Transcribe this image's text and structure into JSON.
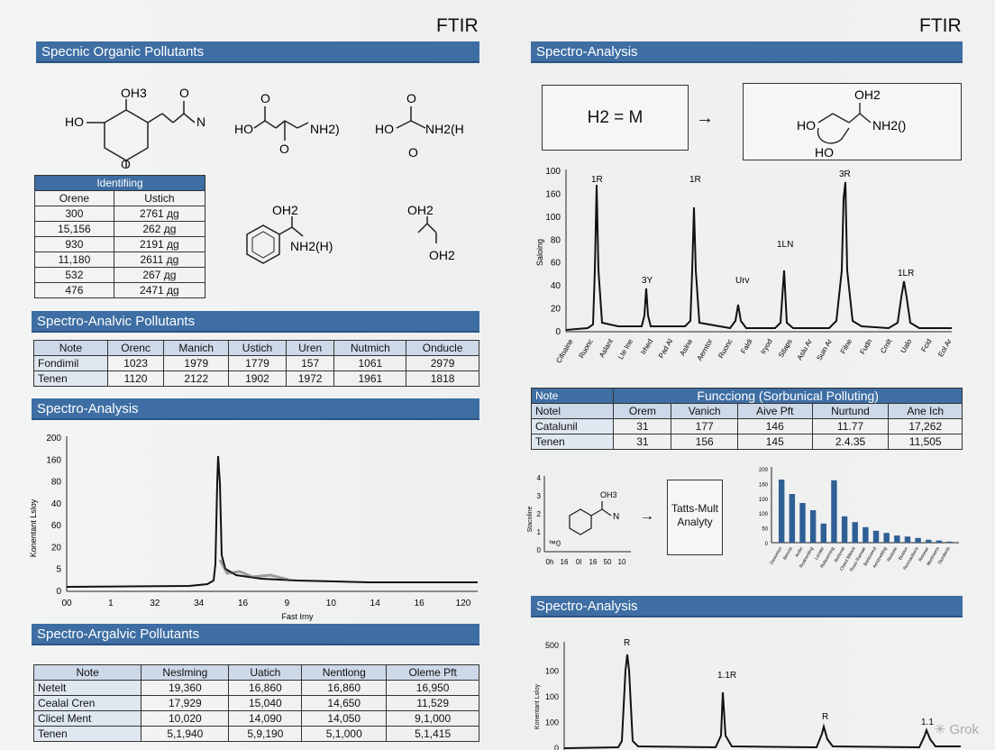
{
  "left": {
    "title": "FTIR",
    "section1": "Specnic Organic Pollutants",
    "molecules_row1": [
      {
        "labels": [
          "OH3",
          "HO",
          "N",
          "O",
          "O"
        ]
      },
      {
        "labels": [
          "HO",
          "O",
          "O",
          "NH2)"
        ]
      },
      {
        "labels": [
          "HO",
          "O",
          "O",
          "NH2(H"
        ]
      }
    ],
    "molecules_row2": [
      {
        "labels": [
          "OH2",
          "NH2(H)"
        ]
      },
      {
        "labels": [
          "OH2",
          "OH2"
        ]
      }
    ],
    "ident_table": {
      "title": "Identifiing",
      "headers": [
        "Orene",
        "Ustich"
      ],
      "rows": [
        [
          "300",
          "2761 дg"
        ],
        [
          "15,156",
          "262 дg"
        ],
        [
          "930",
          "2191 дg"
        ],
        [
          "11,180",
          "2611 дg"
        ],
        [
          "532",
          "267 дg"
        ],
        [
          "476",
          "2471 дg"
        ]
      ]
    },
    "section2": "Spectro-Analvic Pollutants",
    "table2": {
      "headers": [
        "Note",
        "Orenc",
        "Manich",
        "Ustich",
        "Uren",
        "Nutmich",
        "Onducle"
      ],
      "rows": [
        [
          "Fondimil",
          "1023",
          "1979",
          "1779",
          "157",
          "1061",
          "2979"
        ],
        [
          "Tenen",
          "1120",
          "2122",
          "1902",
          "1972",
          "1961",
          "1818"
        ]
      ]
    },
    "section3": "Spectro-Analysis",
    "chart": {
      "y_ticks": [
        "200",
        "160",
        "80",
        "40",
        "60",
        "20",
        "5",
        "0"
      ],
      "x_ticks": [
        "00",
        "1",
        "32",
        "34",
        "16",
        "9",
        "10",
        "14",
        "16",
        "120"
      ],
      "xlabel": "Fast Irny",
      "ylabel": "Konentant Lsloy"
    },
    "section4": "Spectro-Argalvic Pollutants",
    "table3": {
      "headers": [
        "Note",
        "Neslming",
        "Uatich",
        "Nentlong",
        "Oleme Pft"
      ],
      "rows": [
        [
          "Netelt",
          "19,360",
          "16,860",
          "16,860",
          "16,950"
        ],
        [
          "Cealal Cren",
          "17,929",
          "15,040",
          "14,650",
          "11,529"
        ],
        [
          "Clicel Ment",
          "10,020",
          "14,090",
          "14,050",
          "9,1,000"
        ],
        [
          "Tenen",
          "5,1,940",
          "5,9,190",
          "5,1,000",
          "5,1,415"
        ]
      ]
    }
  },
  "right": {
    "title": "FTIR",
    "section1": "Spectro-Analysis",
    "reaction": {
      "lhs": "H2 = M",
      "arrow": "→",
      "rhs_labels": [
        "OH2",
        "HO",
        "NH2()",
        "HO"
      ]
    },
    "chart": {
      "type": "line",
      "y_ticks": [
        "100",
        "160",
        "100",
        "80",
        "60",
        "40",
        "20",
        "0"
      ],
      "ylabel": "Saloing",
      "peak_labels": [
        "1R",
        "3Y",
        "1R",
        "Urv",
        "1LN",
        "3R",
        "1LR"
      ],
      "x_ticks": [
        "Cifoaine",
        "Ruonc",
        "Aslant",
        "Lte Ine",
        "Irhed",
        "Pad Al",
        "Aslne",
        "Aerntor",
        "Ruonc",
        "Faldi",
        "Iryod",
        "Stlaps",
        "Aslu Ar",
        "Suin Ar",
        "Filne",
        "Fudn",
        "Crnlt",
        "Ualo",
        "Fcid",
        "Eol Ar"
      ]
    },
    "table": {
      "title_left": "Note",
      "title_right": "Funcciong (Sorbunical Polluting)",
      "headers": [
        "Notel",
        "Orem",
        "Vanich",
        "Aive Pft",
        "Nurtund",
        "Ane Ich"
      ],
      "rows": [
        [
          "Catalunil",
          "31",
          "177",
          "146",
          "11.77",
          "17,262"
        ],
        [
          "Tenen",
          "31",
          "156",
          "145",
          "2.4.35",
          "11,505"
        ]
      ]
    },
    "mini_chart": {
      "y_ticks": [
        "4",
        "3",
        "2",
        "1",
        "0"
      ],
      "x_ticks": [
        "0h",
        "16",
        "0l",
        "16",
        "50",
        "10"
      ],
      "ylabel": "Stacoline",
      "annotation": "™0",
      "mol_labels": [
        "OH3",
        "N"
      ]
    },
    "arrow": "→",
    "box_text": [
      "Tatts-Mult",
      "Analyty"
    ],
    "bar_chart": {
      "type": "bar",
      "y_ticks": [
        "200",
        "160",
        "100",
        "100",
        "50",
        "0"
      ],
      "values": [
        175,
        135,
        110,
        90,
        53,
        173,
        73,
        57,
        43,
        33,
        27,
        20,
        17,
        13,
        8,
        6,
        3
      ],
      "categories": [
        "Desonion",
        "Bennis",
        "Anter",
        "Rodnenting",
        "Lonate",
        "Roboerning",
        "Borlonal",
        "Chard Bltrent",
        "Ruoo Ramwe",
        "Bertoneed",
        "Arrotnetting",
        "Riotnrte",
        "Boston",
        "Ronnaotions",
        "Rrtnewr",
        "Mortnerrts",
        "Stordanis"
      ]
    },
    "section2": "Spectro-Analysis",
    "bottom_chart": {
      "y_ticks": [
        "500",
        "100",
        "100",
        "100",
        "0"
      ],
      "ylabel": "Konentant Lsloy",
      "peak_labels": [
        "R",
        "1.1R",
        "R",
        "1.1"
      ]
    },
    "watermark": "Grok"
  }
}
